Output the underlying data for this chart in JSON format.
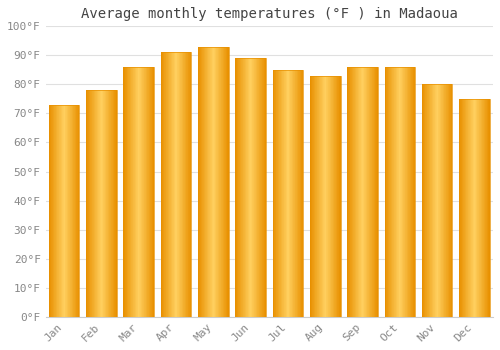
{
  "title": "Average monthly temperatures (°F ) in Madaoua",
  "categories": [
    "Jan",
    "Feb",
    "Mar",
    "Apr",
    "May",
    "Jun",
    "Jul",
    "Aug",
    "Sep",
    "Oct",
    "Nov",
    "Dec"
  ],
  "values": [
    73,
    78,
    86,
    91,
    93,
    89,
    85,
    83,
    86,
    86,
    80,
    75
  ],
  "bar_color_center": "#FFD060",
  "bar_color_edge": "#E89000",
  "background_color": "#ffffff",
  "ylim": [
    0,
    100
  ],
  "yticks": [
    0,
    10,
    20,
    30,
    40,
    50,
    60,
    70,
    80,
    90,
    100
  ],
  "ytick_labels": [
    "0°F",
    "10°F",
    "20°F",
    "30°F",
    "40°F",
    "50°F",
    "60°F",
    "70°F",
    "80°F",
    "90°F",
    "100°F"
  ],
  "grid_color": "#e0e0e0",
  "title_fontsize": 10,
  "tick_fontsize": 8,
  "font_family": "monospace",
  "bar_width": 0.82,
  "gradient_steps": 50
}
